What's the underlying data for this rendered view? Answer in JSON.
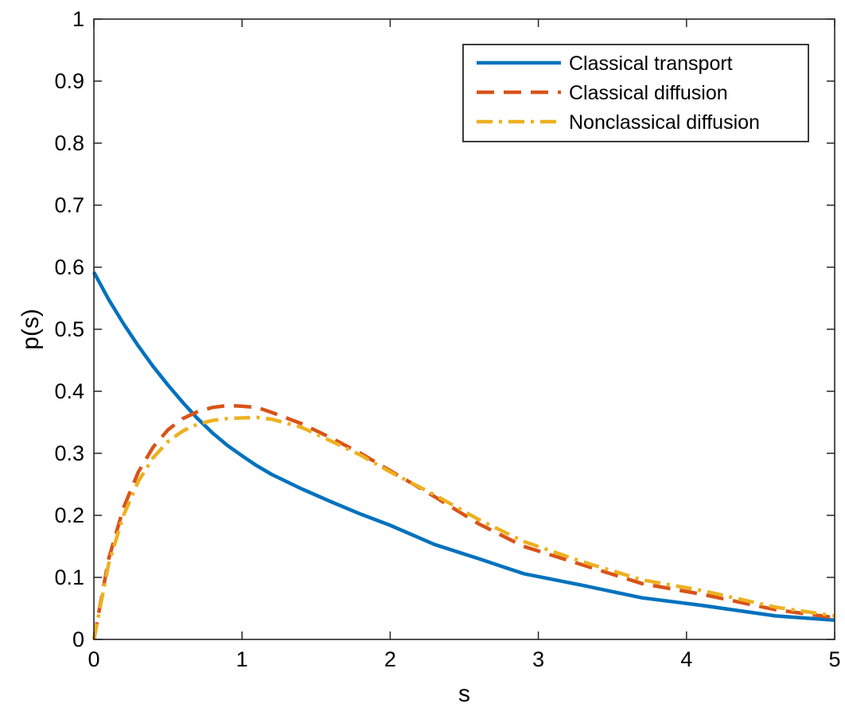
{
  "chart_data": {
    "type": "line",
    "title": "",
    "xlabel": "s",
    "ylabel": "p(s)",
    "xlim": [
      0,
      5
    ],
    "ylim": [
      0,
      1
    ],
    "xticks": [
      0,
      1,
      2,
      3,
      4,
      5
    ],
    "xtick_labels": [
      "0",
      "1",
      "2",
      "3",
      "4",
      "5"
    ],
    "yticks": [
      0,
      0.1,
      0.2,
      0.3,
      0.4,
      0.5,
      0.6,
      0.7,
      0.8,
      0.9,
      1
    ],
    "ytick_labels": [
      "0",
      "0.1",
      "0.2",
      "0.3",
      "0.4",
      "0.5",
      "0.6",
      "0.7",
      "0.8",
      "0.9",
      "1"
    ],
    "grid": false,
    "legend_position": "top-right",
    "series": [
      {
        "name": "Classical transport",
        "color": "#0072BD",
        "style": "solid",
        "x": [
          0,
          0.1,
          0.2,
          0.3,
          0.4,
          0.5,
          0.6,
          0.7,
          0.8,
          0.9,
          1.0,
          1.1,
          1.2,
          1.4,
          1.6,
          1.8,
          2.0,
          2.3,
          2.6,
          2.9,
          3.3,
          3.7,
          4.1,
          4.6,
          5.0
        ],
        "values": [
          0.592,
          0.548,
          0.509,
          0.473,
          0.44,
          0.41,
          0.382,
          0.356,
          0.333,
          0.313,
          0.296,
          0.28,
          0.266,
          0.243,
          0.222,
          0.202,
          0.184,
          0.153,
          0.13,
          0.106,
          0.087,
          0.067,
          0.055,
          0.038,
          0.031
        ]
      },
      {
        "name": "Classical diffusion",
        "color": "#D95319",
        "style": "dashed",
        "x": [
          0,
          0.1,
          0.2,
          0.3,
          0.4,
          0.5,
          0.6,
          0.7,
          0.8,
          0.9,
          1.0,
          1.1,
          1.2,
          1.4,
          1.6,
          1.8,
          2.0,
          2.3,
          2.6,
          2.9,
          3.3,
          3.7,
          4.1,
          4.6,
          5.0
        ],
        "values": [
          0.0,
          0.13,
          0.212,
          0.27,
          0.31,
          0.338,
          0.356,
          0.367,
          0.374,
          0.377,
          0.376,
          0.374,
          0.366,
          0.348,
          0.325,
          0.3,
          0.272,
          0.23,
          0.186,
          0.15,
          0.12,
          0.09,
          0.073,
          0.048,
          0.035
        ]
      },
      {
        "name": "Nonclassical diffusion",
        "color": "#EDB120",
        "style": "dashdot",
        "x": [
          0,
          0.1,
          0.2,
          0.3,
          0.4,
          0.5,
          0.6,
          0.7,
          0.8,
          0.9,
          1.0,
          1.1,
          1.2,
          1.4,
          1.6,
          1.8,
          2.0,
          2.3,
          2.6,
          2.9,
          3.3,
          3.7,
          4.1,
          4.6,
          5.0
        ],
        "values": [
          0.0,
          0.122,
          0.2,
          0.255,
          0.293,
          0.319,
          0.336,
          0.347,
          0.353,
          0.356,
          0.357,
          0.358,
          0.355,
          0.342,
          0.32,
          0.297,
          0.27,
          0.233,
          0.193,
          0.158,
          0.125,
          0.096,
          0.079,
          0.052,
          0.038
        ]
      }
    ]
  }
}
